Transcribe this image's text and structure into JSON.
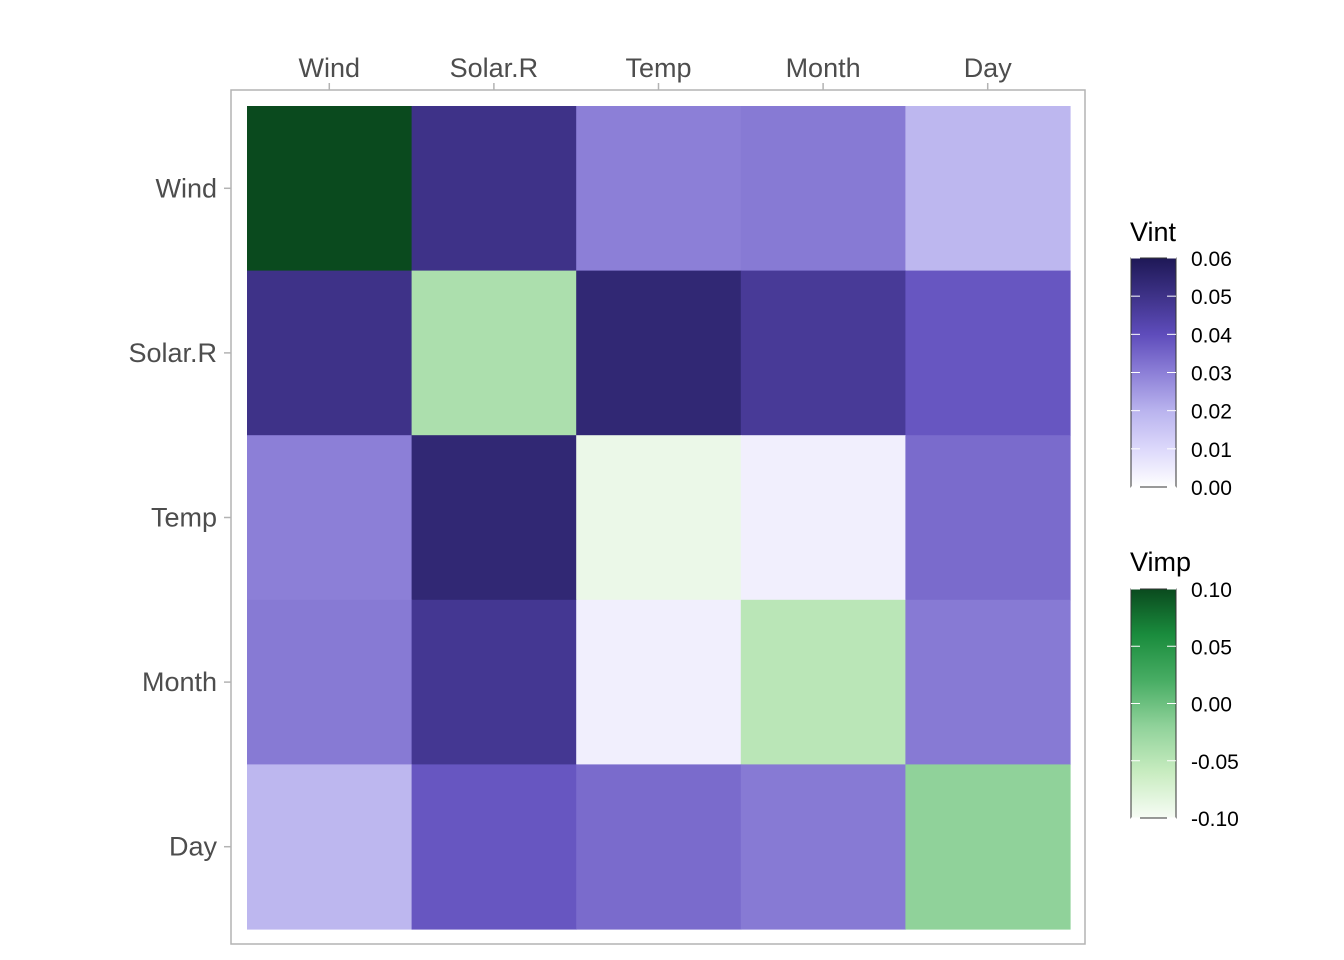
{
  "chart_data": {
    "type": "heatmap",
    "title": "",
    "xlabel": "",
    "ylabel": "",
    "x_categories": [
      "Wind",
      "Solar.R",
      "Temp",
      "Month",
      "Day"
    ],
    "y_categories": [
      "Wind",
      "Solar.R",
      "Temp",
      "Month",
      "Day"
    ],
    "x_axis_position": "top",
    "grid": false,
    "diagonal": {
      "measure": "Vimp",
      "values": [
        0.1,
        -0.04,
        -0.09,
        -0.05,
        -0.02
      ]
    },
    "off_diagonal": {
      "measure": "Vint",
      "matrix": [
        [
          null,
          0.05,
          0.03,
          0.031,
          0.019
        ],
        [
          0.05,
          null,
          0.054,
          0.047,
          0.038
        ],
        [
          0.03,
          0.054,
          null,
          0.004,
          0.034
        ],
        [
          0.031,
          0.048,
          0.004,
          null,
          0.031
        ],
        [
          0.019,
          0.038,
          0.034,
          0.031,
          null
        ]
      ]
    },
    "legends": [
      {
        "title": "Vint",
        "range": [
          0.0,
          0.06
        ],
        "ticks": [
          "0.06",
          "0.05",
          "0.04",
          "0.03",
          "0.02",
          "0.01",
          "0.00"
        ],
        "tick_values": [
          0.06,
          0.05,
          0.04,
          0.03,
          0.02,
          0.01,
          0.0
        ],
        "colors": [
          "#ffffff",
          "#dcd8fb",
          "#b9b3ee",
          "#8c7fd7",
          "#5e4cbb",
          "#3e3288",
          "#1e1856"
        ]
      },
      {
        "title": "Vimp",
        "range": [
          -0.1,
          0.1
        ],
        "ticks": [
          "0.10",
          "0.05",
          "0.00",
          "-0.05",
          "-0.10"
        ],
        "tick_values": [
          0.1,
          0.05,
          0.0,
          -0.05,
          -0.1
        ],
        "colors": [
          "#f7fcf5",
          "#c8ecc0",
          "#90d29a",
          "#48ad64",
          "#1a8c3d",
          "#0a4a1e"
        ]
      }
    ],
    "legend_placement": "right"
  }
}
